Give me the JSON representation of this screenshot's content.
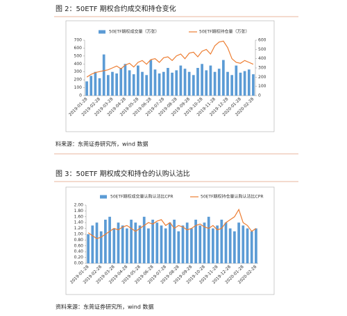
{
  "chart_data": [
    {
      "type": "combo",
      "title": "图 2：50ETF 期权合约成交和持仓变化",
      "source": "料来源：东莞证券研究所，wind 数据",
      "categories": [
        "2019-01-28",
        null,
        null,
        "2019-02-28",
        null,
        null,
        "2019-03-28",
        null,
        null,
        "2019-04-28",
        null,
        null,
        "2019-05-28",
        null,
        null,
        "2019-06-28",
        null,
        null,
        "2019-07-28",
        null,
        null,
        "2019-08-28",
        null,
        null,
        "2019-09-28",
        null,
        null,
        "2019-10-28",
        null,
        null,
        "2019-11-28",
        null,
        null,
        "2019-12-28",
        null,
        null,
        "2020-01-28",
        null,
        null,
        "2020-02-28"
      ],
      "series": [
        {
          "name": "50ETF期权成交量（万张）",
          "type": "bar",
          "color": "#5b9bd5",
          "values": [
            180,
            250,
            300,
            220,
            520,
            260,
            300,
            280,
            350,
            400,
            320,
            270,
            380,
            300,
            260,
            450,
            330,
            280,
            300,
            350,
            290,
            320,
            380,
            340,
            300,
            260,
            350,
            400,
            320,
            380,
            300,
            340,
            450,
            300,
            260,
            380,
            290,
            310,
            330,
            270
          ]
        },
        {
          "name": "50ETF期权持仓量（万张）",
          "type": "line",
          "axis": "y2",
          "color": "#ed7d31",
          "values": [
            200,
            230,
            250,
            260,
            270,
            280,
            300,
            320,
            290,
            330,
            350,
            310,
            360,
            380,
            340,
            390,
            400,
            360,
            410,
            420,
            380,
            430,
            450,
            400,
            460,
            470,
            420,
            480,
            500,
            450,
            540,
            580,
            590,
            520,
            400,
            360,
            350,
            380,
            360,
            340
          ]
        }
      ],
      "ylim": [
        0,
        700
      ],
      "yticks": [
        0,
        100,
        200,
        300,
        400,
        500,
        600,
        700
      ],
      "y2lim": [
        0,
        600
      ],
      "y2ticks": [
        0,
        100,
        200,
        300,
        400,
        500,
        600
      ]
    },
    {
      "type": "combo",
      "title": "图 3：50ETF 期权成交和持仓的认购认沽比",
      "source": "资料来源：东莞证券研究所，wind 数据",
      "categories": [
        "2019-01-28",
        null,
        null,
        "2019-02-28",
        null,
        null,
        "2019-03-28",
        null,
        null,
        "2019-04-28",
        null,
        null,
        "2019-05-28",
        null,
        null,
        "2019-06-28",
        null,
        null,
        "2019-07-28",
        null,
        null,
        "2019-08-28",
        null,
        null,
        "2019-09-28",
        null,
        null,
        "2019-10-28",
        null,
        null,
        "2019-11-28",
        null,
        null,
        "2019-12-28",
        null,
        null,
        "2020-01-28",
        null,
        null,
        "2020-02-28"
      ],
      "series": [
        {
          "name": "50ETF期权成交量认购认沽比CPR",
          "type": "bar",
          "color": "#5b9bd5",
          "values": [
            1.0,
            1.3,
            1.4,
            1.1,
            1.5,
            1.6,
            1.2,
            1.4,
            1.3,
            1.2,
            1.5,
            1.4,
            1.3,
            1.6,
            1.2,
            1.5,
            1.4,
            1.3,
            1.2,
            1.4,
            1.5,
            1.1,
            1.3,
            1.4,
            1.2,
            1.5,
            1.3,
            1.4,
            1.6,
            1.2,
            1.3,
            1.5,
            1.4,
            1.2,
            1.1,
            1.4,
            1.3,
            1.2,
            1.1,
            1.2
          ]
        },
        {
          "name": "50ETF期权持仓量认购认沽比CPR",
          "type": "line",
          "color": "#ed7d31",
          "values": [
            1.05,
            0.95,
            0.85,
            0.9,
            1.0,
            1.1,
            1.2,
            1.15,
            1.25,
            1.3,
            1.2,
            1.1,
            1.2,
            1.3,
            1.4,
            1.35,
            1.45,
            1.5,
            1.3,
            1.4,
            1.2,
            1.3,
            1.25,
            1.15,
            1.2,
            1.3,
            1.35,
            1.25,
            1.2,
            1.3,
            1.15,
            1.2,
            1.4,
            1.5,
            1.6,
            1.85,
            1.4,
            1.3,
            1.1,
            1.2
          ]
        }
      ],
      "ylim": [
        0,
        2
      ],
      "yticks": [
        {
          "value": 0,
          "label": "0.00"
        },
        {
          "value": 0.2,
          "label": "0.20"
        },
        {
          "value": 0.4,
          "label": "0.40"
        },
        {
          "value": 0.6,
          "label": "0.60"
        },
        {
          "value": 0.8,
          "label": "0.80"
        },
        {
          "value": 1,
          "label": "1.00"
        },
        {
          "value": 1.2,
          "label": "1.20"
        },
        {
          "value": 1.4,
          "label": "1.40"
        },
        {
          "value": 1.6,
          "label": "1.60"
        },
        {
          "value": 1.8,
          "label": "1.80"
        },
        {
          "value": 2,
          "label": "2.00"
        }
      ]
    }
  ]
}
